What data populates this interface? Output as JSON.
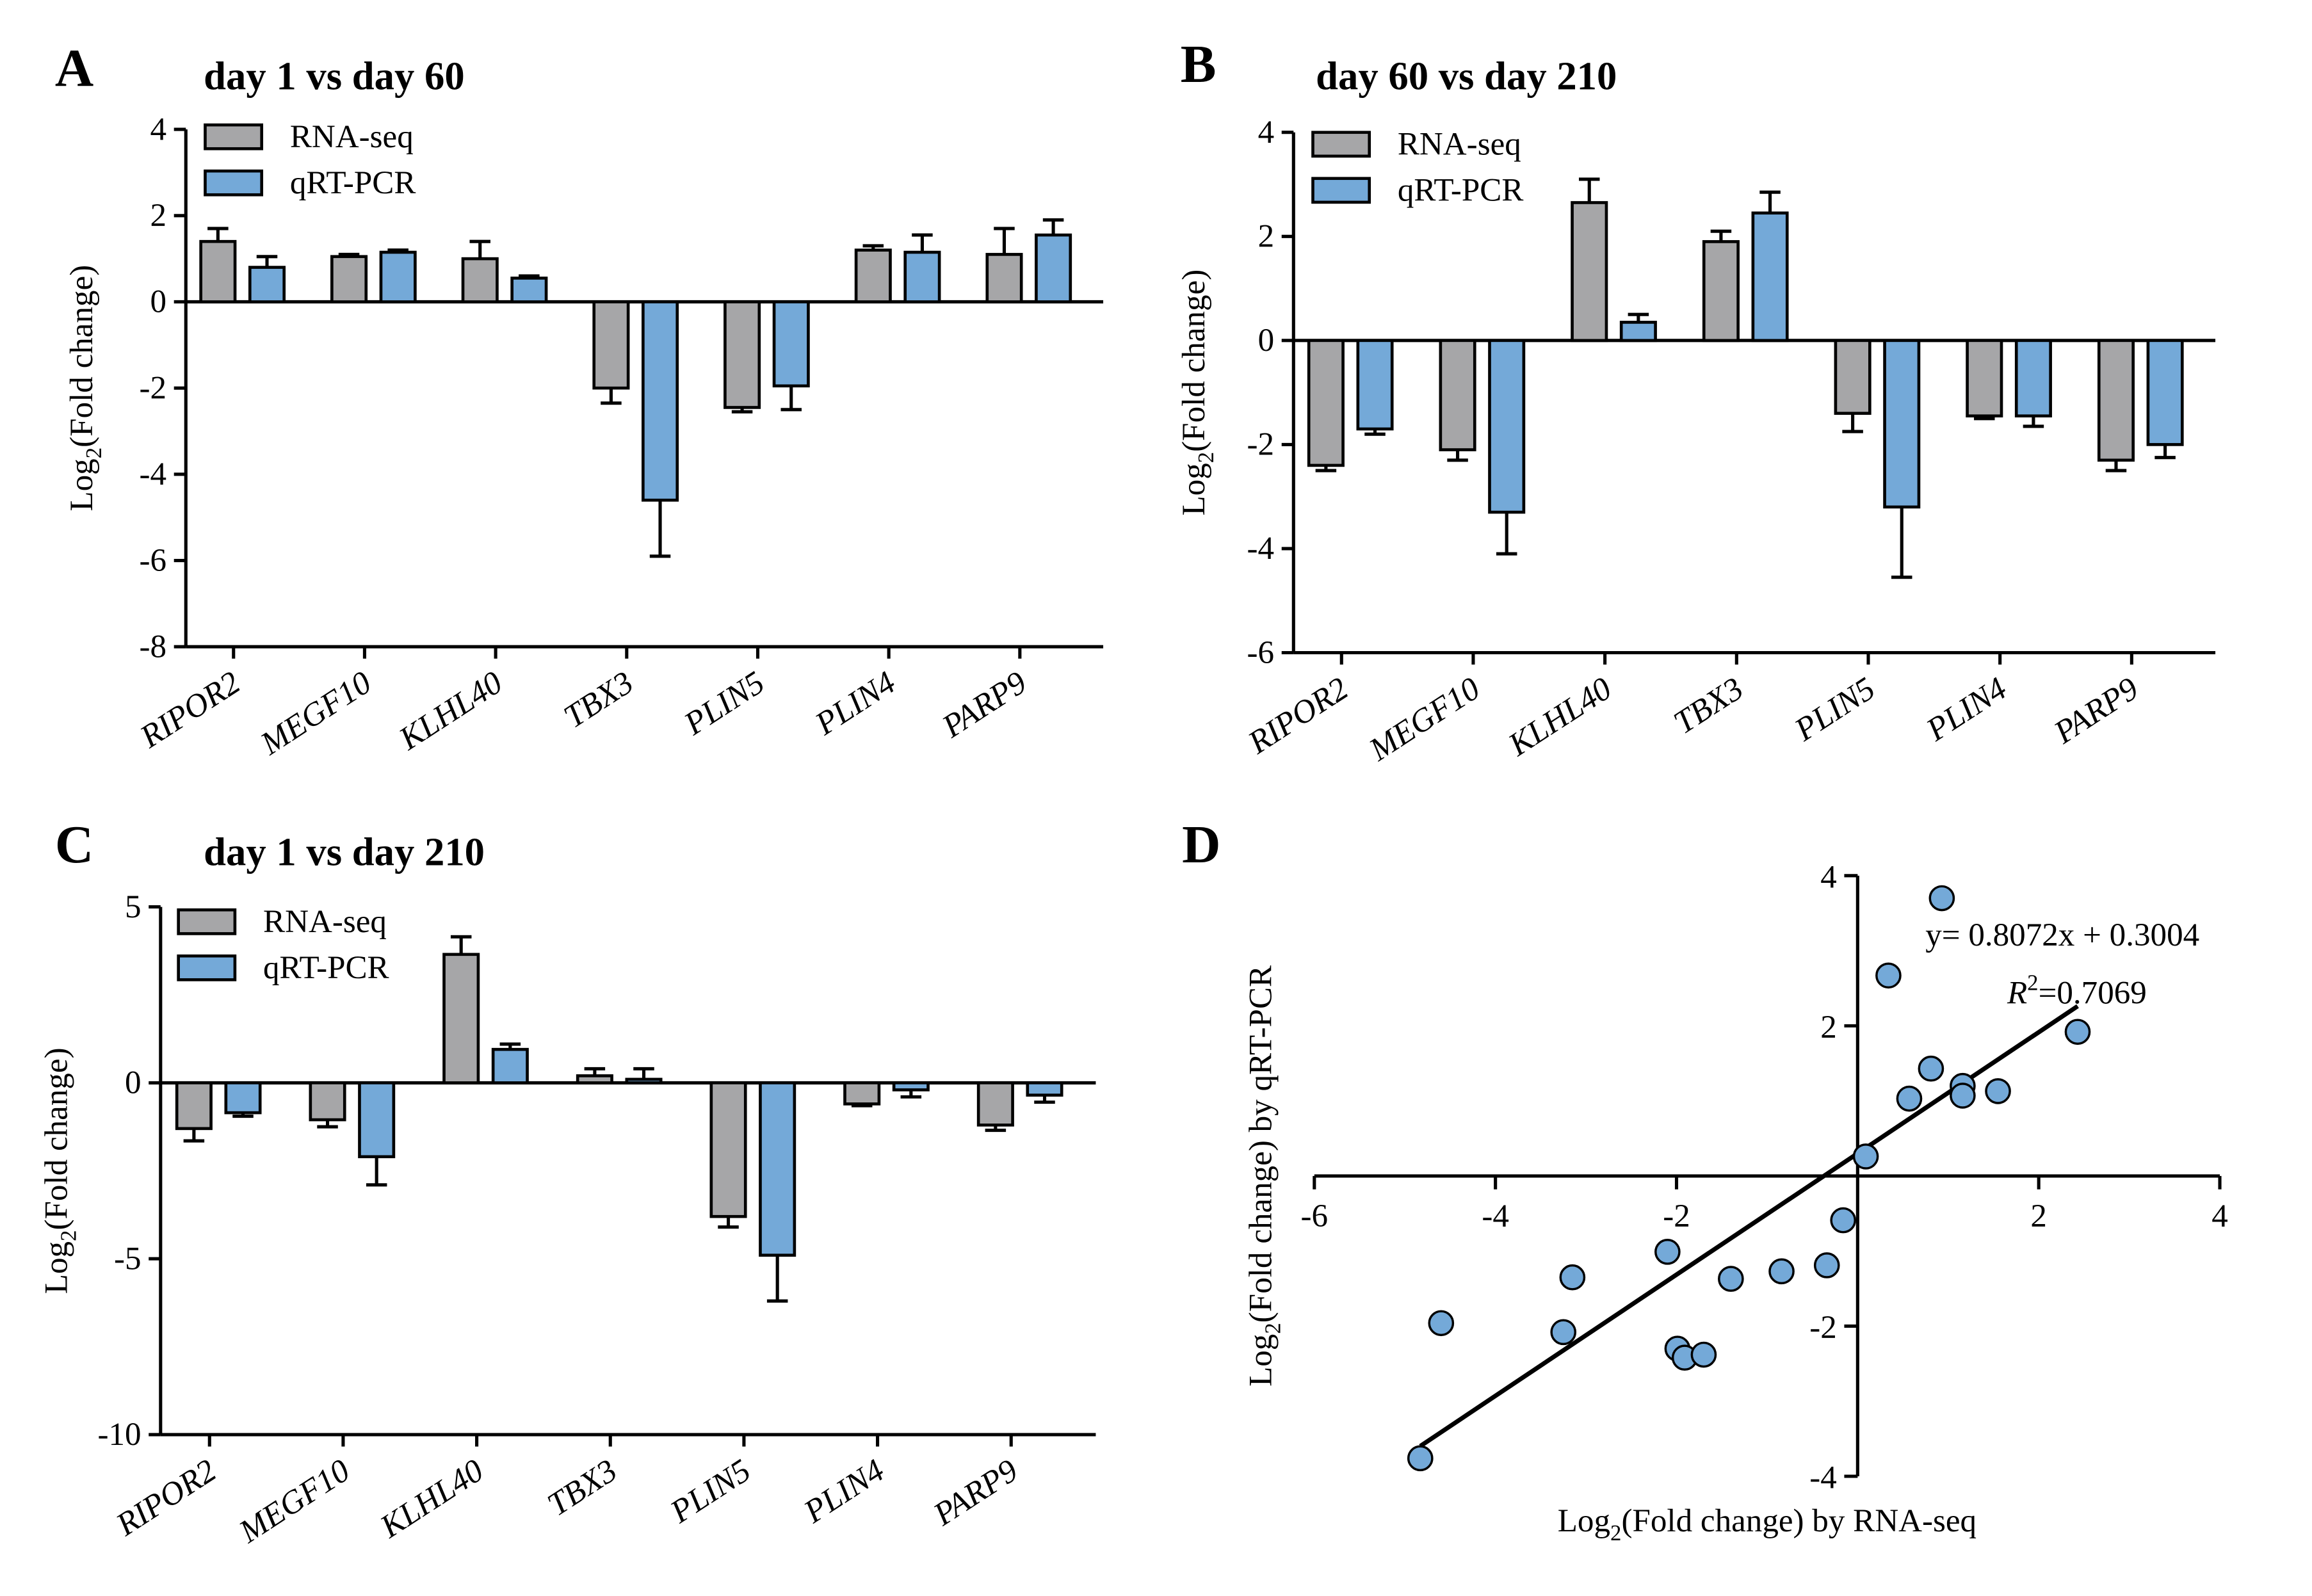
{
  "chart_data": [
    {
      "type": "bar",
      "panel": "A",
      "title": "day 1 vs day 60",
      "y_label": [
        "Log",
        "2",
        "(Fold change)"
      ],
      "categories": [
        "RIPOR2",
        "MEGF10",
        "KLHL40",
        "TBX3",
        "PLIN5",
        "PLIN4",
        "PARP9"
      ],
      "series": [
        {
          "name": "RNA-seq",
          "color": "#a6a6a8",
          "values": [
            1.4,
            1.05,
            1.0,
            -2.0,
            -2.45,
            1.2,
            1.1
          ],
          "errors": [
            0.3,
            0.05,
            0.4,
            0.35,
            0.1,
            0.1,
            0.6
          ]
        },
        {
          "name": "qRT-PCR",
          "color": "#74a9d8",
          "values": [
            0.8,
            1.15,
            0.55,
            -4.6,
            -1.95,
            1.15,
            1.55
          ],
          "errors": [
            0.25,
            0.05,
            0.05,
            1.3,
            0.55,
            0.4,
            0.35
          ]
        }
      ],
      "ylim": [
        -8,
        4
      ],
      "yticks": [
        -8,
        -6,
        -4,
        -2,
        0,
        2,
        4
      ]
    },
    {
      "type": "bar",
      "panel": "B",
      "title": "day 60 vs day 210",
      "y_label": [
        "Log",
        "2",
        "(Fold change)"
      ],
      "categories": [
        "RIPOR2",
        "MEGF10",
        "KLHL40",
        "TBX3",
        "PLIN5",
        "PLIN4",
        "PARP9"
      ],
      "series": [
        {
          "name": "RNA-seq",
          "color": "#a6a6a8",
          "values": [
            -2.4,
            -2.1,
            2.65,
            1.9,
            -1.4,
            -1.45,
            -2.3
          ],
          "errors": [
            0.1,
            0.2,
            0.45,
            0.2,
            0.35,
            0.05,
            0.2
          ]
        },
        {
          "name": "qRT-PCR",
          "color": "#74a9d8",
          "values": [
            -1.7,
            -3.3,
            0.35,
            2.45,
            -3.2,
            -1.45,
            -2.0
          ],
          "errors": [
            0.1,
            0.8,
            0.15,
            0.4,
            1.35,
            0.2,
            0.25
          ]
        }
      ],
      "ylim": [
        -6,
        4
      ],
      "yticks": [
        -6,
        -4,
        -2,
        0,
        2,
        4
      ]
    },
    {
      "type": "bar",
      "panel": "C",
      "title": "day 1 vs day 210",
      "y_label": [
        "Log",
        "2",
        "(Fold change)"
      ],
      "categories": [
        "RIPOR2",
        "MEGF10",
        "KLHL40",
        "TBX3",
        "PLIN5",
        "PLIN4",
        "PARP9"
      ],
      "series": [
        {
          "name": "RNA-seq",
          "color": "#a6a6a8",
          "values": [
            -1.3,
            -1.05,
            3.65,
            0.2,
            -3.8,
            -0.6,
            -1.2
          ],
          "errors": [
            0.35,
            0.2,
            0.5,
            0.2,
            0.3,
            0.05,
            0.15
          ]
        },
        {
          "name": "qRT-PCR",
          "color": "#74a9d8",
          "values": [
            -0.85,
            -2.1,
            0.95,
            0.1,
            -4.9,
            -0.2,
            -0.35
          ],
          "errors": [
            0.1,
            0.8,
            0.15,
            0.3,
            1.3,
            0.2,
            0.2
          ]
        }
      ],
      "ylim": [
        -10,
        5
      ],
      "yticks": [
        -10,
        -5,
        0,
        5
      ]
    },
    {
      "type": "scatter",
      "panel": "D",
      "x_label": [
        "Log",
        "2",
        "(Fold change) by RNA-seq"
      ],
      "y_label": [
        "Log",
        "2",
        "(Fold change) by qRT-PCR"
      ],
      "color": "#74a9d8",
      "x": [
        0.93,
        0.34,
        2.43,
        0.81,
        1.16,
        1.16,
        1.55,
        0.57,
        0.09,
        -0.16,
        -0.34,
        -0.84,
        -1.4,
        -2.1,
        -3.15,
        -4.6,
        -3.25,
        -1.99,
        -1.91,
        -1.7,
        -4.83
      ],
      "y": [
        3.7,
        2.67,
        1.92,
        1.43,
        1.2,
        1.07,
        1.13,
        1.03,
        0.26,
        -0.59,
        -1.19,
        -1.27,
        -1.37,
        -1.01,
        -1.35,
        -1.96,
        -2.08,
        -2.3,
        -2.42,
        -2.38,
        -3.76
      ],
      "fit": {
        "slope": 0.8072,
        "intercept": 0.3004
      },
      "equation": "y= 0.8072x + 0.3004",
      "r_squared": [
        "R",
        "2",
        "=0.7069"
      ],
      "xlim": [
        -6,
        4
      ],
      "xticks": [
        -6,
        -4,
        -2,
        2,
        4
      ],
      "ylim": [
        -4,
        4
      ],
      "yticks": [
        -4,
        -2,
        2,
        4
      ]
    }
  ]
}
